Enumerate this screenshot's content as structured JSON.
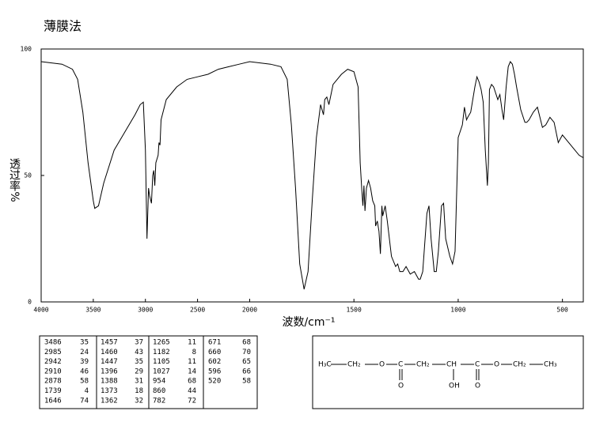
{
  "chart_data": {
    "type": "line",
    "title": "薄膜法",
    "x_label": "波数/cm⁻¹",
    "y_label": "透过率%",
    "x": [
      4000,
      3800,
      3700,
      3650,
      3600,
      3550,
      3500,
      3486,
      3450,
      3400,
      3300,
      3200,
      3100,
      3050,
      3020,
      3000,
      2985,
      2970,
      2960,
      2942,
      2930,
      2920,
      2910,
      2900,
      2878,
      2870,
      2860,
      2850,
      2800,
      2700,
      2600,
      2500,
      2400,
      2300,
      2200,
      2100,
      2000,
      1900,
      1850,
      1820,
      1800,
      1780,
      1760,
      1739,
      1720,
      1700,
      1680,
      1660,
      1646,
      1640,
      1630,
      1620,
      1610,
      1600,
      1560,
      1530,
      1500,
      1480,
      1470,
      1462,
      1457,
      1452,
      1447,
      1440,
      1430,
      1420,
      1410,
      1400,
      1396,
      1388,
      1380,
      1373,
      1366,
      1362,
      1350,
      1340,
      1320,
      1300,
      1290,
      1280,
      1265,
      1250,
      1230,
      1210,
      1190,
      1182,
      1170,
      1150,
      1140,
      1130,
      1115,
      1105,
      1095,
      1080,
      1070,
      1060,
      1040,
      1027,
      1015,
      1000,
      980,
      970,
      960,
      954,
      940,
      920,
      910,
      900,
      890,
      880,
      870,
      860,
      855,
      850,
      840,
      830,
      810,
      800,
      790,
      782,
      770,
      760,
      750,
      740,
      730,
      720,
      700,
      680,
      671,
      660,
      640,
      620,
      602,
      596,
      580,
      560,
      540,
      520,
      500,
      480,
      450,
      420,
      400
    ],
    "series": [
      {
        "color": "#000000",
        "values": [
          95,
          94,
          92,
          88,
          75,
          55,
          40,
          37,
          38,
          47,
          60,
          67,
          74,
          78,
          79,
          60,
          25,
          45,
          42,
          39,
          50,
          52,
          46,
          55,
          58,
          63,
          62,
          72,
          80,
          85,
          88,
          89,
          90,
          92,
          93,
          94,
          95,
          94,
          93,
          88,
          70,
          45,
          15,
          5,
          12,
          40,
          65,
          78,
          74,
          80,
          81,
          78,
          82,
          86,
          90,
          92,
          91,
          85,
          55,
          44,
          38,
          46,
          36,
          45,
          48,
          45,
          40,
          38,
          30,
          32,
          28,
          19,
          38,
          34,
          38,
          32,
          18,
          14,
          15,
          12,
          12,
          14,
          11,
          12,
          9,
          9,
          12,
          35,
          38,
          25,
          12,
          12,
          20,
          38,
          39,
          25,
          18,
          15,
          20,
          65,
          70,
          77,
          72,
          73,
          75,
          85,
          89,
          87,
          84,
          79,
          60,
          46,
          55,
          84,
          86,
          85,
          80,
          82,
          76,
          72,
          85,
          93,
          95,
          94,
          90,
          85,
          76,
          71,
          71,
          72,
          75,
          77,
          71,
          69,
          70,
          73,
          71,
          63,
          66,
          64,
          61,
          58,
          57
        ]
      }
    ],
    "xlim": [
      4000,
      400
    ],
    "ylim": [
      0,
      100
    ],
    "xticks": [
      4000,
      3500,
      3000,
      2500,
      2000,
      1500,
      1000,
      500
    ],
    "yticks": [
      0,
      50,
      100
    ],
    "x_scale_break": {
      "at": 2000,
      "factor": 2
    }
  },
  "peak_table": {
    "columns": [
      [
        [
          3486,
          35
        ],
        [
          2985,
          24
        ],
        [
          2942,
          39
        ],
        [
          2910,
          46
        ],
        [
          2878,
          58
        ],
        [
          1739,
          4
        ],
        [
          1646,
          74
        ]
      ],
      [
        [
          1457,
          37
        ],
        [
          1460,
          43
        ],
        [
          1447,
          35
        ],
        [
          1396,
          29
        ],
        [
          1388,
          31
        ],
        [
          1373,
          18
        ],
        [
          1362,
          32
        ]
      ],
      [
        [
          1265,
          11
        ],
        [
          1182,
          8
        ],
        [
          1105,
          11
        ],
        [
          1027,
          14
        ],
        [
          954,
          68
        ],
        [
          860,
          44
        ],
        [
          782,
          72
        ]
      ],
      [
        [
          671,
          68
        ],
        [
          660,
          70
        ],
        [
          602,
          65
        ],
        [
          596,
          66
        ],
        [
          520,
          58
        ]
      ]
    ]
  },
  "structure": {
    "main": [
      "H₃C",
      "CH₂",
      "O",
      "C",
      "CH₂",
      "CH",
      "C",
      "O",
      "CH₂",
      "CH₃"
    ],
    "below": [
      "O",
      "OH",
      "O"
    ]
  }
}
